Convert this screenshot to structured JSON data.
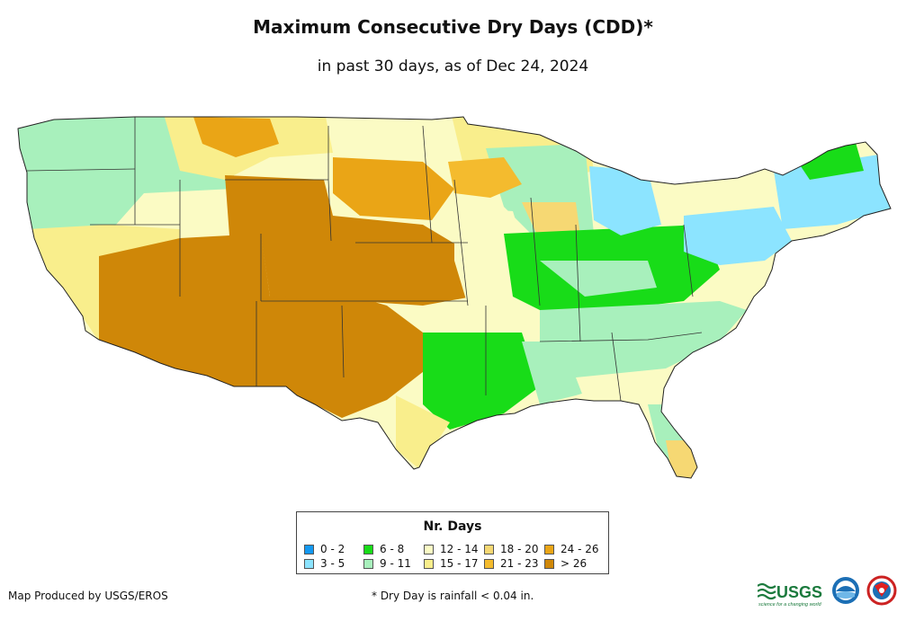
{
  "title": "Maximum Consecutive Dry Days (CDD)*",
  "subtitle": "in past 30 days, as of Dec 24, 2024",
  "legend": {
    "title": "Nr. Days",
    "items": [
      {
        "label": "0 - 2",
        "color": "#1499f2"
      },
      {
        "label": "3 - 5",
        "color": "#8ce4ff"
      },
      {
        "label": "6 - 8",
        "color": "#18dc18"
      },
      {
        "label": "9 - 11",
        "color": "#a8f0bc"
      },
      {
        "label": "12 - 14",
        "color": "#fbfbc4"
      },
      {
        "label": "15 - 17",
        "color": "#f9ee8c"
      },
      {
        "label": "18 - 20",
        "color": "#f6d873"
      },
      {
        "label": "21 - 23",
        "color": "#f4bb2e"
      },
      {
        "label": "24 - 26",
        "color": "#eaa516"
      },
      {
        "label": "> 26",
        "color": "#cf8708"
      }
    ]
  },
  "footer": {
    "produced_by": "Map Produced by USGS/EROS",
    "footnote": "* Dry Day is rainfall < 0.04 in."
  },
  "logos": {
    "usgs": "USGS",
    "usgs_tagline": "science for a changing world"
  }
}
